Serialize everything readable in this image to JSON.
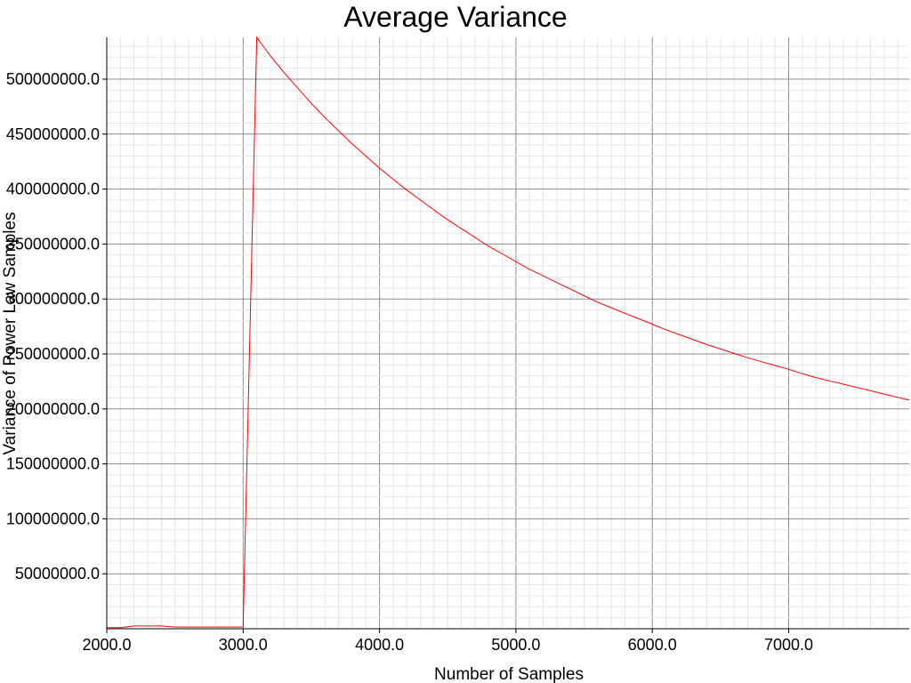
{
  "chart_data": {
    "type": "line",
    "title": "Average Variance",
    "xlabel": "Number of Samples",
    "ylabel": "Variance of Power Law Samples",
    "xlim": [
      2000,
      7900
    ],
    "ylim": [
      0,
      538000000
    ],
    "grid": true,
    "x_ticks": [
      2000,
      3000,
      4000,
      5000,
      6000,
      7000
    ],
    "x_tick_labels": [
      "2000.0",
      "3000.0",
      "4000.0",
      "5000.0",
      "6000.0",
      "7000.0"
    ],
    "y_ticks": [
      50000000,
      100000000,
      150000000,
      200000000,
      250000000,
      300000000,
      350000000,
      400000000,
      450000000,
      500000000
    ],
    "y_tick_labels": [
      "50000000.0",
      "100000000.0",
      "150000000.0",
      "200000000.0",
      "250000000.0",
      "300000000.0",
      "350000000.0",
      "400000000.0",
      "450000000.0",
      "500000000.0"
    ],
    "series": [
      {
        "color": "#ff0000",
        "x": [
          2000,
          2100,
          2200,
          2300,
          2400,
          2500,
          2600,
          2700,
          2800,
          2900,
          3000,
          3100,
          3200,
          3300,
          3400,
          3500,
          3600,
          3700,
          3800,
          3900,
          4000,
          4100,
          4200,
          4300,
          4400,
          4500,
          4600,
          4700,
          4800,
          4900,
          5000,
          5100,
          5200,
          5300,
          5400,
          5500,
          5600,
          5700,
          5800,
          5900,
          6000,
          6100,
          6200,
          6300,
          6400,
          6500,
          6600,
          6700,
          6800,
          6900,
          7000,
          7100,
          7200,
          7300,
          7400,
          7500,
          7600,
          7700,
          7800,
          7900
        ],
        "values": [
          1000000,
          1000000,
          2500000,
          2500000,
          2500000,
          1500000,
          1500000,
          1500000,
          1500000,
          1500000,
          1500000,
          538000000,
          521000000,
          506000000,
          492000000,
          478000000,
          465000000,
          453000000,
          441000000,
          430000000,
          419000000,
          409000000,
          399000000,
          390000000,
          381000000,
          372000000,
          364000000,
          356000000,
          348000000,
          341000000,
          334000000,
          327000000,
          321000000,
          315000000,
          309000000,
          303000000,
          297000000,
          292000000,
          287000000,
          282000000,
          277000000,
          272000000,
          267500000,
          263000000,
          258500000,
          254500000,
          250500000,
          246500000,
          243000000,
          239500000,
          236000000,
          232000000,
          228500000,
          225500000,
          222500000,
          219500000,
          216500000,
          213500000,
          210500000,
          208000000
        ]
      }
    ]
  }
}
